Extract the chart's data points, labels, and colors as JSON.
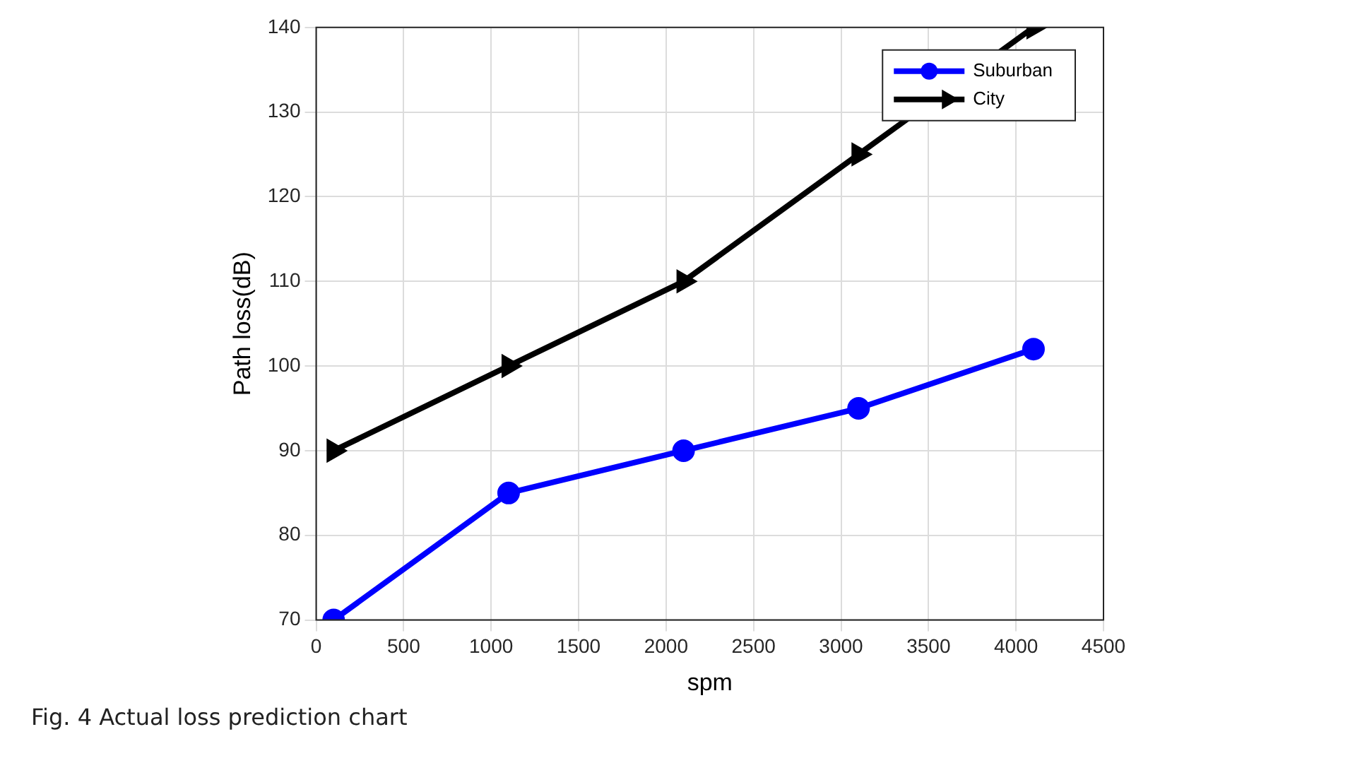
{
  "chart_data": {
    "type": "line",
    "xlabel": "spm",
    "ylabel": "Path loss(dB)",
    "x": [
      100,
      1100,
      2100,
      3100,
      4100
    ],
    "series": [
      {
        "name": "Suburban",
        "color": "#0000ff",
        "values": [
          70,
          85,
          90,
          95,
          102
        ],
        "marker": "circle"
      },
      {
        "name": "City",
        "color": "#000000",
        "values": [
          90,
          100,
          110,
          125,
          140
        ],
        "marker": "triangle"
      }
    ],
    "xlim": [
      0,
      4500
    ],
    "xticks": [
      0,
      500,
      1000,
      1500,
      2000,
      2500,
      3000,
      3500,
      4000,
      4500
    ],
    "ylim": [
      70,
      140
    ],
    "yticks": [
      70,
      80,
      90,
      100,
      110,
      120,
      130,
      140
    ],
    "grid": true,
    "legend": "top right",
    "line_style": "solid",
    "annotations": [
      "Fig. 4 Actual loss prediction chart"
    ]
  }
}
